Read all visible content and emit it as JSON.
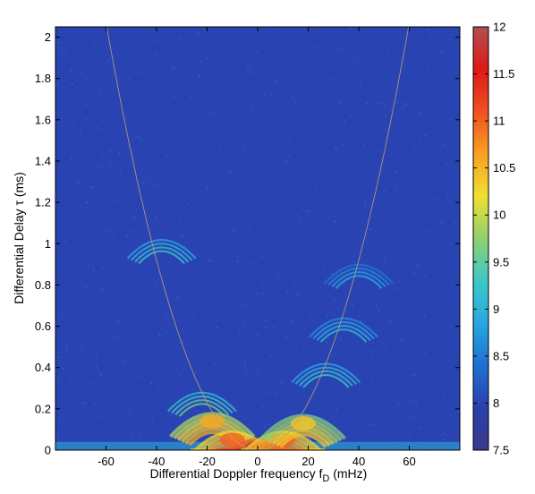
{
  "chart_data": {
    "type": "heatmap",
    "title": "",
    "xlabel": "Differential Doppler frequency f",
    "xlabel_subscript": "D",
    "xlabel_unit": " (mHz)",
    "ylabel": "Differential Delay τ (ms)",
    "xlim": [
      -80,
      80
    ],
    "ylim": [
      0,
      2.05
    ],
    "x_ticks": [
      -60,
      -40,
      -20,
      0,
      20,
      40,
      60
    ],
    "y_ticks": [
      0,
      0.2,
      0.4,
      0.6,
      0.8,
      1,
      1.2,
      1.4,
      1.6,
      1.8,
      2
    ],
    "y_tick_labels": [
      "0",
      "0.2",
      "0.4",
      "0.6",
      "0.8",
      "1",
      "1.2",
      "1.4",
      "1.6",
      "1.8",
      "2"
    ],
    "colorbar": {
      "range": [
        7.5,
        12
      ],
      "ticks": [
        7.5,
        8,
        8.5,
        9,
        9.5,
        10,
        10.5,
        11,
        11.5,
        12
      ],
      "tick_labels": [
        "7.5",
        "8",
        "8.5",
        "9",
        "9.5",
        "10",
        "10.5",
        "11",
        "11.5",
        "12"
      ],
      "colormap": [
        "#3a3a8c",
        "#2a3fae",
        "#1f6fd0",
        "#28a8e0",
        "#3cc8c8",
        "#8fd070",
        "#f0e030",
        "#f8a020",
        "#f05020",
        "#e01818",
        "#b05050"
      ]
    },
    "background_level": 8.0,
    "parabola": {
      "curvature_ms_per_mHz2": 0.000575,
      "apex_x": 0,
      "apex_y": 0
    },
    "arclets": [
      {
        "x": -38,
        "y": 1.0,
        "level": 9.3
      },
      {
        "x": -22,
        "y": 0.26,
        "level": 9.6
      },
      {
        "x": -18,
        "y": 0.14,
        "level": 10.6
      },
      {
        "x": -10,
        "y": 0.05,
        "level": 11.0
      },
      {
        "x": 0,
        "y": 0.01,
        "level": 11.8
      },
      {
        "x": 10,
        "y": 0.05,
        "level": 11.0
      },
      {
        "x": 18,
        "y": 0.13,
        "level": 10.4
      },
      {
        "x": 27,
        "y": 0.4,
        "level": 9.3
      },
      {
        "x": 34,
        "y": 0.62,
        "level": 9.1
      },
      {
        "x": 40,
        "y": 0.88,
        "level": 8.9
      }
    ]
  }
}
